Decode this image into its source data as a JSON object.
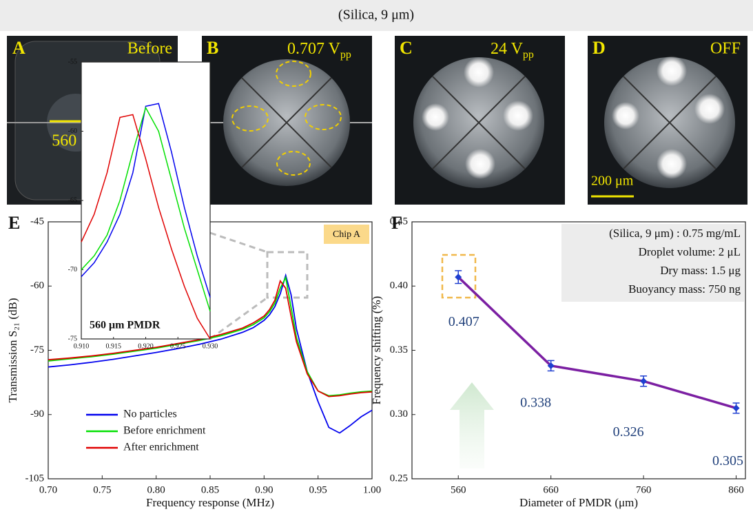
{
  "header": "(Silica, 9 μm)",
  "photos": [
    {
      "panel": "A",
      "label": "Before",
      "scale": "560 μm"
    },
    {
      "panel": "B",
      "label": "0.707 V",
      "label_sub": "pp"
    },
    {
      "panel": "C",
      "label": "24 V",
      "label_sub": "pp"
    },
    {
      "panel": "D",
      "label": "OFF",
      "scale": "200 μm"
    }
  ],
  "chart_data": [
    {
      "type": "line",
      "panel": "E",
      "x_label": "Frequency response (MHz)",
      "y_label": "Transmission S₂₁ (dB)",
      "annotation": "Chip A",
      "legend": "lower left",
      "x": [
        0.7,
        0.72,
        0.74,
        0.76,
        0.78,
        0.8,
        0.82,
        0.84,
        0.86,
        0.88,
        0.89,
        0.9,
        0.905,
        0.91,
        0.915,
        0.92,
        0.925,
        0.93,
        0.94,
        0.95,
        0.96,
        0.97,
        0.98,
        0.99,
        1.0
      ],
      "series": [
        {
          "name": "No particles",
          "color": "#0000ee",
          "values": [
            -78.9,
            -78.4,
            -77.8,
            -77.1,
            -76.3,
            -75.5,
            -74.6,
            -73.6,
            -72.4,
            -70.8,
            -69.7,
            -68.0,
            -66.7,
            -64.8,
            -61.8,
            -57.5,
            -62,
            -70,
            -80,
            -87,
            -93,
            -94.3,
            -92.5,
            -90.5,
            -89
          ]
        },
        {
          "name": "Before enrichment",
          "color": "#00e000",
          "values": [
            -77.5,
            -77.0,
            -76.5,
            -75.9,
            -75.2,
            -74.5,
            -73.6,
            -72.7,
            -71.6,
            -70.1,
            -69.0,
            -67.4,
            -66.0,
            -64.0,
            -60.5,
            -58.0,
            -65,
            -72,
            -80,
            -84.5,
            -85.6,
            -85.4,
            -85.0,
            -84.7,
            -84.5
          ]
        },
        {
          "name": "After enrichment",
          "color": "#e00000",
          "values": [
            -77.2,
            -76.8,
            -76.3,
            -75.7,
            -75.0,
            -74.3,
            -73.4,
            -72.5,
            -71.3,
            -69.8,
            -68.6,
            -67.0,
            -65.5,
            -63.3,
            -58.8,
            -60.5,
            -67,
            -73,
            -80.5,
            -84.5,
            -85.8,
            -85.6,
            -85.2,
            -84.9,
            -84.7
          ]
        }
      ],
      "xlim": [
        0.7,
        1.0
      ],
      "xticks": [
        {
          "value": 0.7,
          "label": "0.70"
        },
        0.75,
        {
          "value": 0.8,
          "label": "0.80"
        },
        0.85,
        {
          "value": 0.9,
          "label": "0.90"
        },
        0.95,
        {
          "value": 1.0,
          "label": "1.00"
        }
      ],
      "ylim": [
        -105,
        -45
      ],
      "yticks": [
        -105,
        -90,
        -75,
        -60,
        -45
      ]
    },
    {
      "type": "line",
      "label": "560 μm PMDR",
      "x": [
        0.91,
        0.912,
        0.914,
        0.916,
        0.918,
        0.92,
        0.922,
        0.924,
        0.926,
        0.928,
        0.93
      ],
      "series": [
        {
          "color": "#0000ee",
          "values": [
            -70.5,
            -69.5,
            -68,
            -66,
            -63,
            -58.2,
            -58.0,
            -61.5,
            -65.5,
            -69,
            -72
          ]
        },
        {
          "color": "#00e000",
          "values": [
            -70,
            -69,
            -67.5,
            -65,
            -61.5,
            -58.3,
            -60,
            -63.5,
            -67,
            -70,
            -73
          ]
        },
        {
          "color": "#e00000",
          "values": [
            -68,
            -66,
            -63,
            -59,
            -58.8,
            -62,
            -65.5,
            -68.5,
            -71.2,
            -73.5,
            -75
          ]
        }
      ],
      "xlim": [
        0.91,
        0.93
      ],
      "xticks": [
        {
          "value": 0.91,
          "label": "0.910"
        },
        0.915,
        {
          "value": 0.92,
          "label": "0.920"
        },
        0.925,
        {
          "value": 0.93,
          "label": "0.930"
        }
      ],
      "ylim": [
        -75,
        -55
      ],
      "yticks": [
        -75,
        -70,
        -65,
        -60,
        -55
      ]
    },
    {
      "type": "line",
      "panel": "F",
      "x_label": "Diameter of PMDR (μm)",
      "y_label": "Frequency shifting (%)",
      "annotations": [
        "(Silica, 9 μm) : 0.75 mg/mL",
        "Droplet volume: 2 μL",
        "Dry mass: 1.5 μg",
        "Buoyancy mass: 750 ng"
      ],
      "x": [
        560,
        660,
        760,
        860
      ],
      "series": [
        {
          "color": "#7b1fa2",
          "marker_color": "#1f3fd0",
          "values": [
            0.407,
            0.338,
            0.326,
            0.305
          ],
          "errors": [
            0.005,
            0.004,
            0.004,
            0.004
          ]
        }
      ],
      "xlim": [
        510,
        870
      ],
      "xticks": [
        560,
        660,
        760,
        860
      ],
      "ylim": [
        0.25,
        0.45
      ],
      "yticks": [
        0.25,
        {
          "value": 0.3,
          "label": "0.30"
        },
        0.35,
        {
          "value": 0.4,
          "label": "0.40"
        },
        0.45
      ]
    }
  ]
}
